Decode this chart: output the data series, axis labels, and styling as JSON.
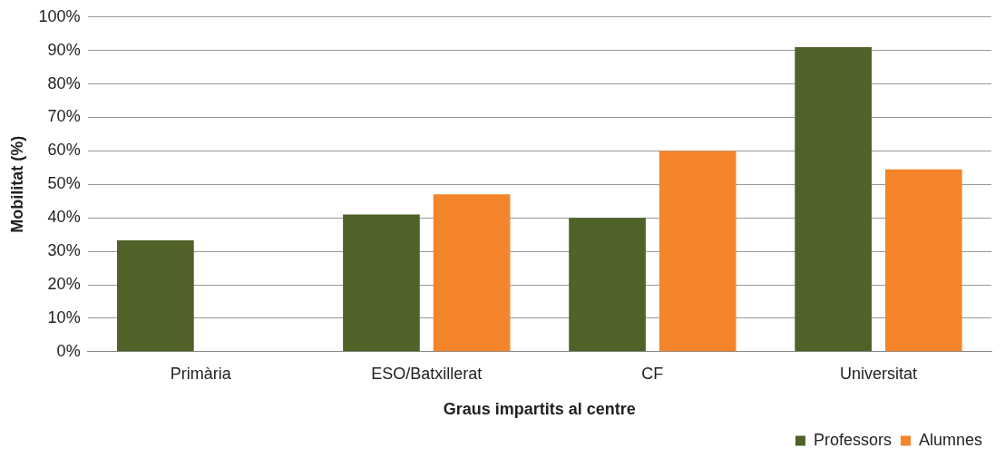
{
  "chart_data": {
    "type": "bar",
    "xlabel": "Graus impartits al centre",
    "ylabel": "Mobilitat (%)",
    "categories": [
      "Primària",
      "ESO/Batxillerat",
      "CF",
      "Universitat"
    ],
    "series": [
      {
        "name": "Professors",
        "color": "#4f6228",
        "values": [
          33.3,
          41,
          40,
          91
        ]
      },
      {
        "name": "Alumnes",
        "color": "#f5852a",
        "values": [
          null,
          47,
          60,
          54.5
        ]
      }
    ],
    "ylim": [
      0,
      100
    ],
    "yticks": [
      {
        "value": 0,
        "label": "0%"
      },
      {
        "value": 10,
        "label": "10%"
      },
      {
        "value": 20,
        "label": "20%"
      },
      {
        "value": 30,
        "label": "30%"
      },
      {
        "value": 40,
        "label": "40%"
      },
      {
        "value": 50,
        "label": "50%"
      },
      {
        "value": 60,
        "label": "60%"
      },
      {
        "value": 70,
        "label": "70%"
      },
      {
        "value": 80,
        "label": "80%"
      },
      {
        "value": 90,
        "label": "90%"
      },
      {
        "value": 100,
        "label": "100%"
      }
    ],
    "grid": "y",
    "legend": "bottom right"
  }
}
